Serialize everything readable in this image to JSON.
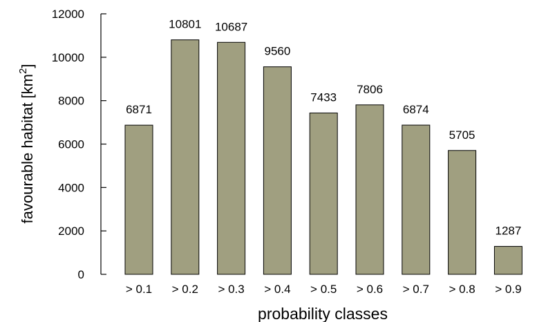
{
  "chart_data": {
    "type": "bar",
    "categories": [
      "> 0.1",
      "> 0.2",
      "> 0.3",
      "> 0.4",
      "> 0.5",
      "> 0.6",
      "> 0.7",
      "> 0.8",
      "> 0.9"
    ],
    "values": [
      6871,
      10801,
      10687,
      9560,
      7433,
      7806,
      6874,
      5705,
      1287
    ],
    "data_labels": [
      "6871",
      "10801",
      "10687",
      "9560",
      "7433",
      "7806",
      "6874",
      "5705",
      "1287"
    ],
    "title": "",
    "xlabel": "probability classes",
    "ylabel": {
      "text": "favourable habitat [km",
      "superscript": "2",
      "suffix": "]"
    },
    "ylim": [
      0,
      12000
    ],
    "yticks": [
      0,
      2000,
      4000,
      6000,
      8000,
      10000,
      12000
    ],
    "ytick_labels": [
      "0",
      "2000",
      "4000",
      "6000",
      "8000",
      "10000",
      "12000"
    ],
    "grid": false,
    "legend": "none",
    "bar_color": "#a09f80",
    "bar_edge_color": "#000000"
  }
}
